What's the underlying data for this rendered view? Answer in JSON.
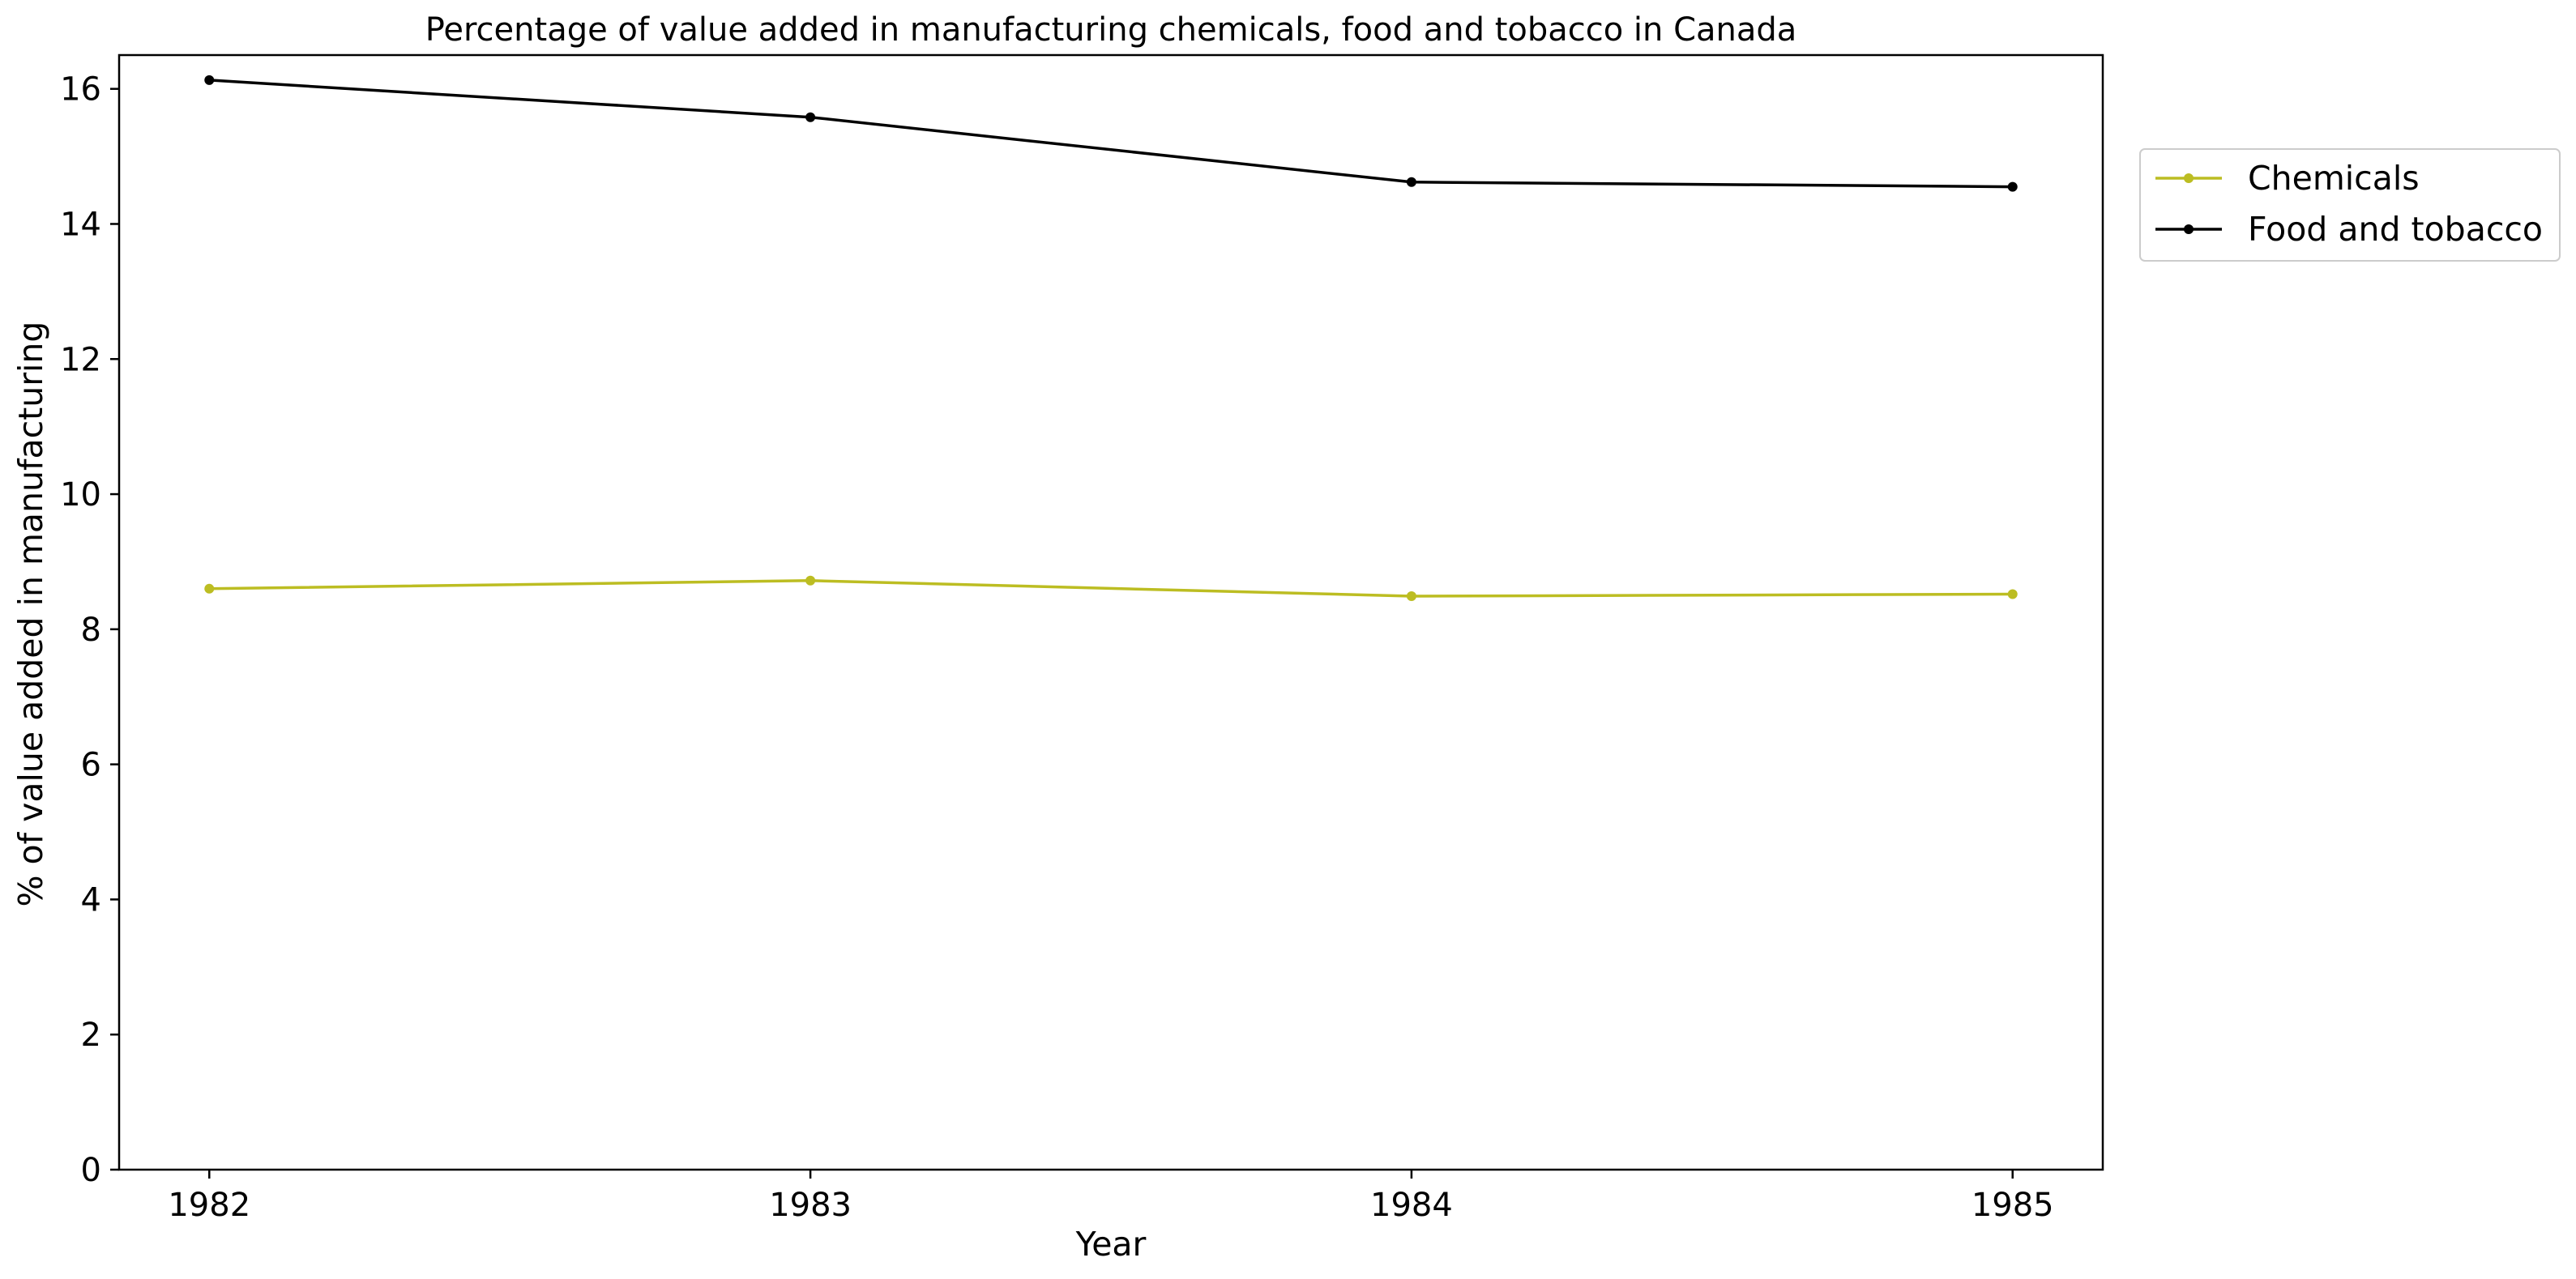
{
  "chart_data": {
    "type": "line",
    "title": "Percentage of value added in manufacturing chemicals, food and tobacco in Canada",
    "xlabel": "Year",
    "ylabel": "% of value added in manufacturing",
    "x": [
      1982,
      1983,
      1984,
      1985
    ],
    "xticks": [
      "1982",
      "1983",
      "1984",
      "1985"
    ],
    "xlim": [
      1981.85,
      1985.15
    ],
    "ylim": [
      0,
      16.5
    ],
    "yticks": [
      "0",
      "2",
      "4",
      "6",
      "8",
      "10",
      "12",
      "14",
      "16"
    ],
    "grid": false,
    "legend_position": "outside-top-right",
    "series": [
      {
        "name": "Chemicals",
        "color": "#bcbd22",
        "marker": "circle",
        "values": [
          8.6,
          8.72,
          8.49,
          8.52
        ]
      },
      {
        "name": "Food and tobacco",
        "color": "#000000",
        "marker": "circle",
        "values": [
          16.13,
          15.58,
          14.62,
          14.55
        ]
      }
    ]
  }
}
